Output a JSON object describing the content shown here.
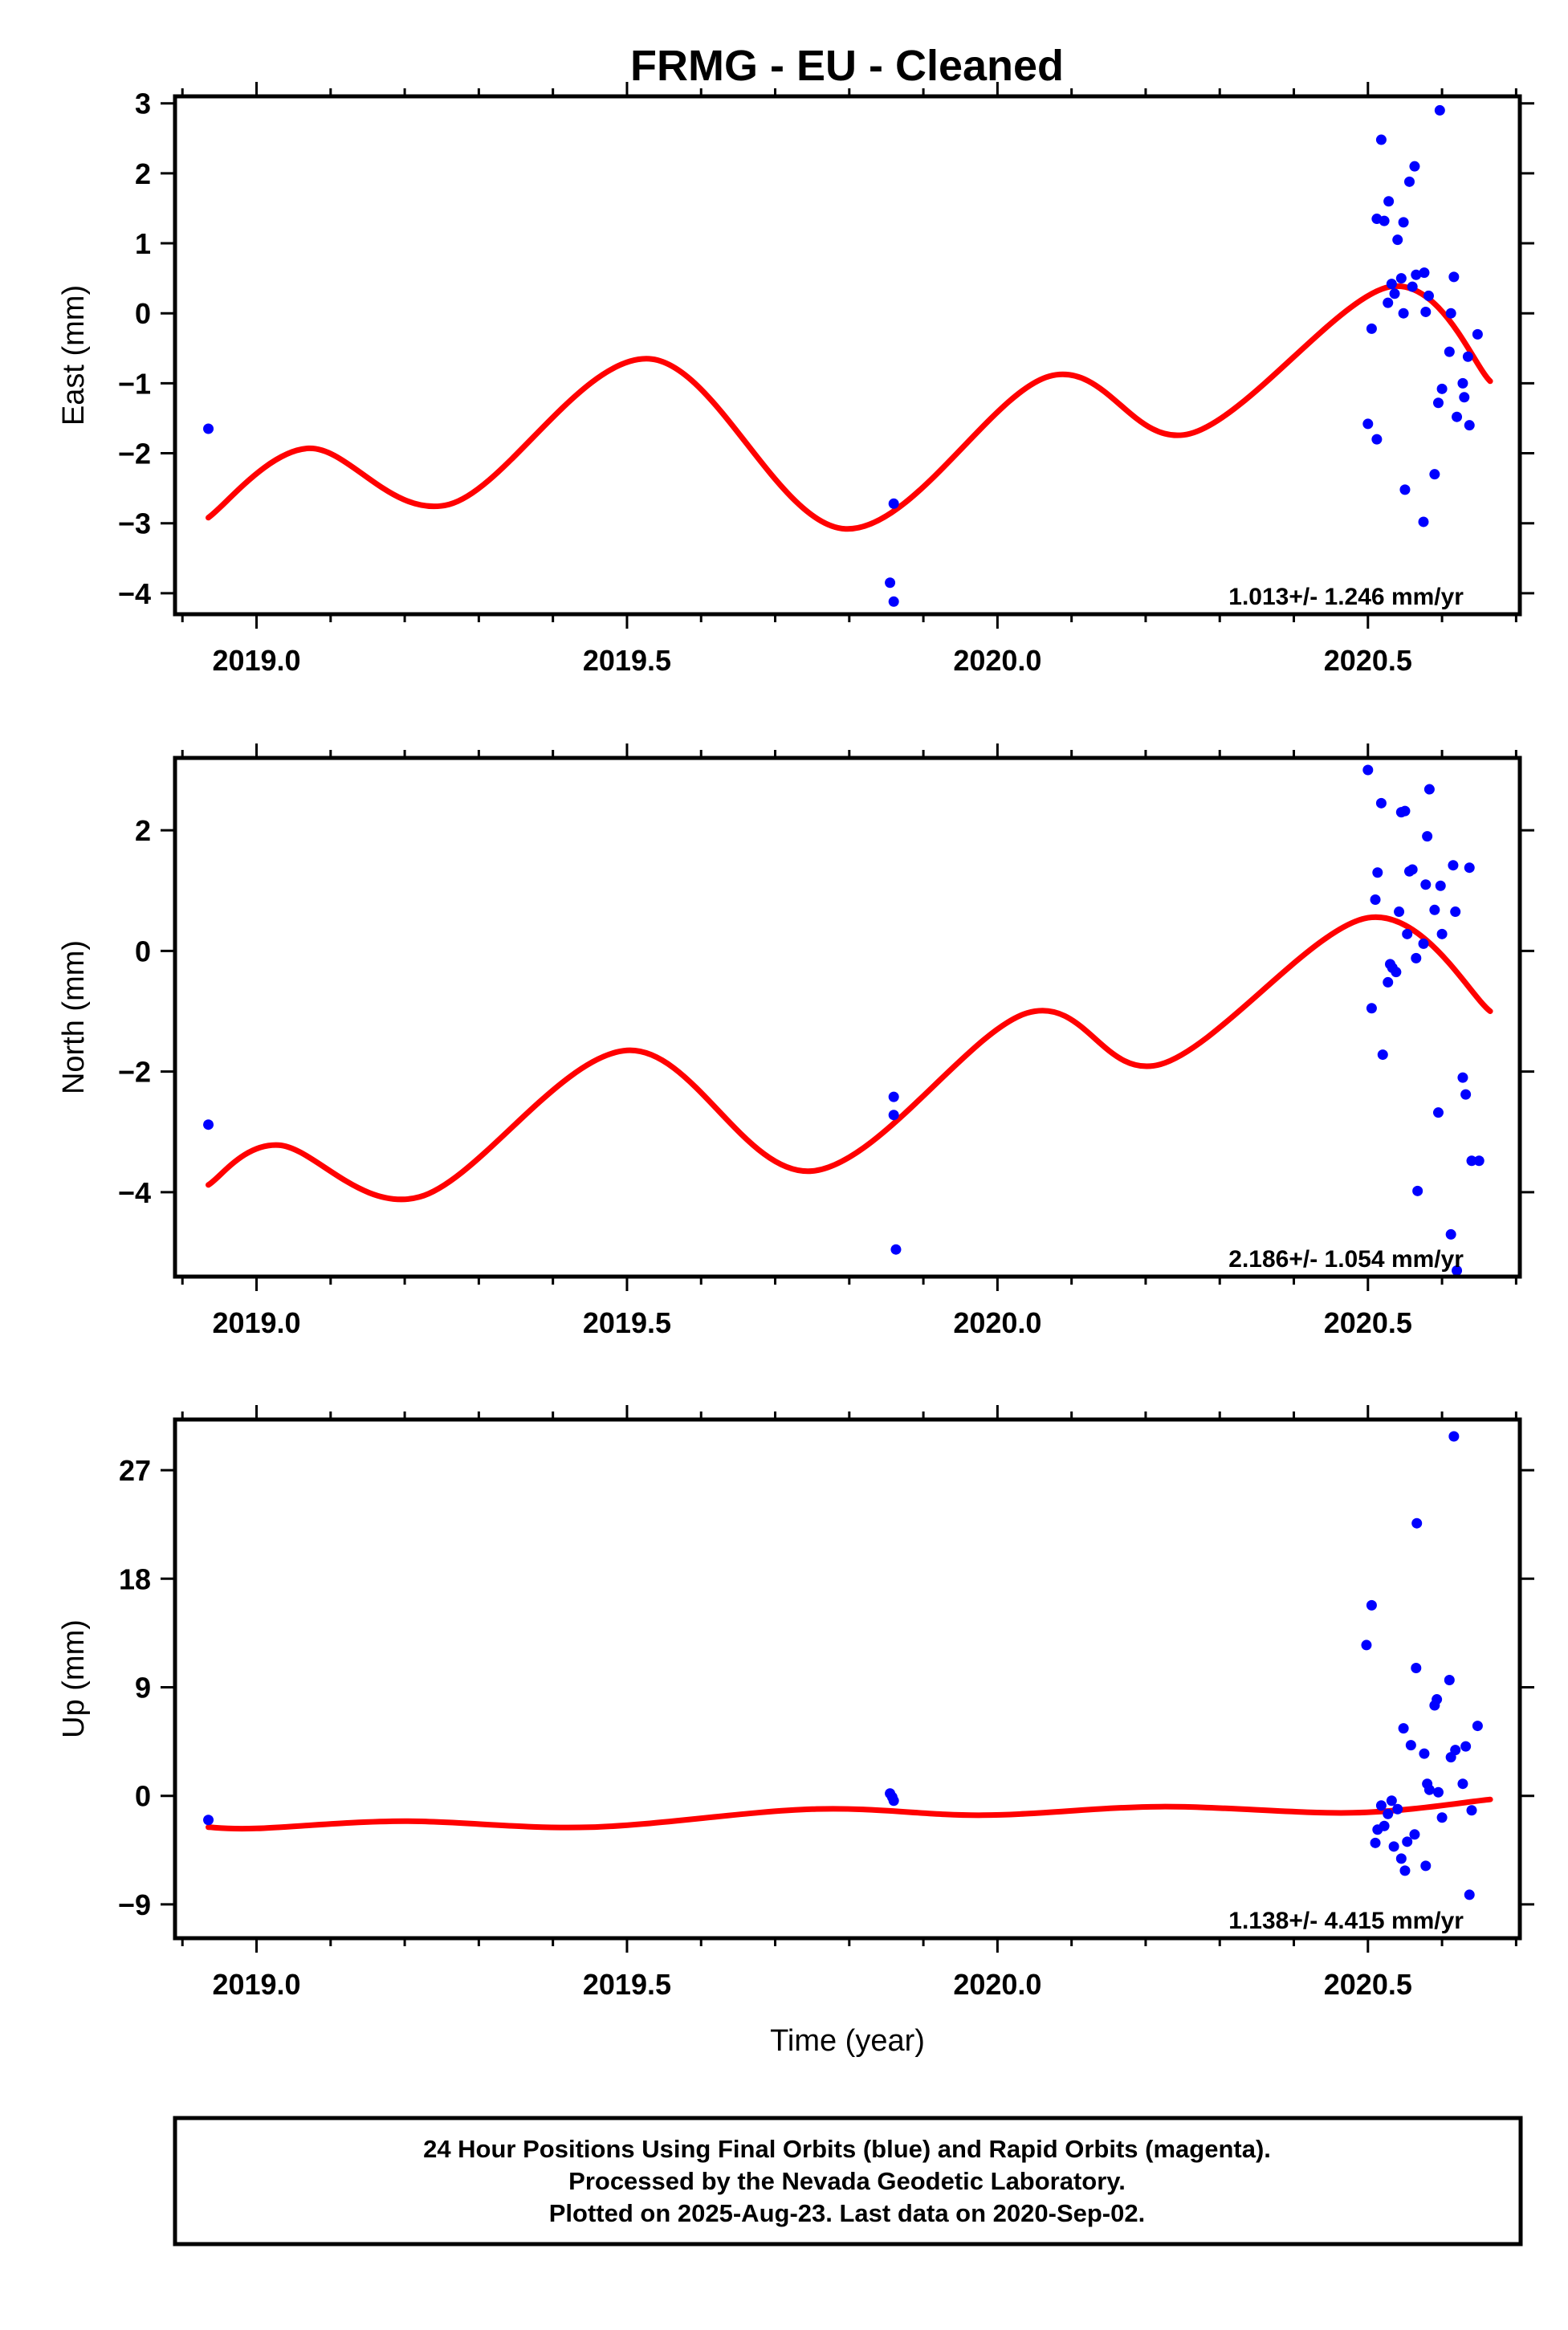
{
  "title": "FRMG  - EU - Cleaned",
  "footer": {
    "lines": [
      "24 Hour Positions Using Final Orbits (blue) and Rapid Orbits (magenta).",
      "Processed by the Nevada Geodetic Laboratory.",
      "Plotted on 2025-Aug-23. Last data on 2020-Sep-02."
    ]
  },
  "colors": {
    "points": "#0000ff",
    "fit": "#ff0000",
    "frame": "#000000"
  },
  "chart_data": [
    {
      "type": "scatter",
      "ylabel": "East (mm)",
      "xlabel": "",
      "xlim": [
        2018.89,
        2020.705
      ],
      "ylim": [
        -4.3,
        3.1
      ],
      "x_ticks": [
        "2019.0",
        "2019.5",
        "2020.0",
        "2020.5"
      ],
      "y_ticks": [
        "3",
        "2",
        "1",
        "0",
        "−1",
        "−2",
        "−3",
        "−4"
      ],
      "y_tick_values": [
        3,
        2,
        1,
        0,
        -1,
        -2,
        -3,
        -4
      ],
      "rate": "1.013+/- 1.246 mm/yr",
      "points": [
        [
          2018.935,
          -1.65
        ],
        [
          2019.86,
          -2.72
        ],
        [
          2019.855,
          -3.85
        ],
        [
          2019.86,
          -4.12
        ],
        [
          2020.5,
          -1.58
        ],
        [
          2020.505,
          -0.22
        ],
        [
          2020.512,
          1.35
        ],
        [
          2020.512,
          -1.8
        ],
        [
          2020.518,
          2.48
        ],
        [
          2020.522,
          1.32
        ],
        [
          2020.527,
          0.15
        ],
        [
          2020.528,
          1.6
        ],
        [
          2020.532,
          0.42
        ],
        [
          2020.536,
          0.28
        ],
        [
          2020.54,
          1.05
        ],
        [
          2020.545,
          0.5
        ],
        [
          2020.548,
          0.0
        ],
        [
          2020.548,
          1.3
        ],
        [
          2020.55,
          -2.52
        ],
        [
          2020.556,
          1.88
        ],
        [
          2020.56,
          0.38
        ],
        [
          2020.563,
          2.1
        ],
        [
          2020.565,
          0.55
        ],
        [
          2020.575,
          -2.98
        ],
        [
          2020.576,
          0.58
        ],
        [
          2020.578,
          0.02
        ],
        [
          2020.582,
          0.25
        ],
        [
          2020.59,
          -2.3
        ],
        [
          2020.595,
          -1.28
        ],
        [
          2020.597,
          2.9
        ],
        [
          2020.6,
          -1.08
        ],
        [
          2020.61,
          -0.55
        ],
        [
          2020.612,
          0.0
        ],
        [
          2020.616,
          0.52
        ],
        [
          2020.62,
          -1.48
        ],
        [
          2020.628,
          -1.0
        ],
        [
          2020.63,
          -1.2
        ],
        [
          2020.635,
          -0.62
        ],
        [
          2020.637,
          -1.6
        ],
        [
          2020.648,
          -0.3
        ]
      ],
      "fit": [
        [
          2018.935,
          -2.92
        ],
        [
          2019.07,
          -1.93
        ],
        [
          2019.26,
          -2.73
        ],
        [
          2019.53,
          -0.65
        ],
        [
          2019.795,
          -3.08
        ],
        [
          2020.07,
          -0.9
        ],
        [
          2020.26,
          -1.72
        ],
        [
          2020.53,
          0.38
        ],
        [
          2020.665,
          -0.97
        ]
      ]
    },
    {
      "type": "scatter",
      "ylabel": "North (mm)",
      "xlabel": "",
      "xlim": [
        2018.89,
        2020.705
      ],
      "ylim": [
        -5.4,
        3.2
      ],
      "x_ticks": [
        "2019.0",
        "2019.5",
        "2020.0",
        "2020.5"
      ],
      "y_ticks": [
        "2",
        "0",
        "−2",
        "−4"
      ],
      "y_tick_values": [
        2,
        0,
        -2,
        -4
      ],
      "rate": "2.186+/- 1.054 mm/yr",
      "points": [
        [
          2018.935,
          -2.88
        ],
        [
          2019.86,
          -2.42
        ],
        [
          2019.86,
          -2.72
        ],
        [
          2019.863,
          -4.95
        ],
        [
          2020.5,
          3.0
        ],
        [
          2020.505,
          -0.95
        ],
        [
          2020.51,
          0.85
        ],
        [
          2020.513,
          1.3
        ],
        [
          2020.518,
          2.45
        ],
        [
          2020.52,
          -1.72
        ],
        [
          2020.527,
          -0.52
        ],
        [
          2020.53,
          -0.22
        ],
        [
          2020.533,
          -0.28
        ],
        [
          2020.538,
          -0.35
        ],
        [
          2020.542,
          0.65
        ],
        [
          2020.545,
          2.3
        ],
        [
          2020.55,
          2.32
        ],
        [
          2020.553,
          0.28
        ],
        [
          2020.556,
          1.32
        ],
        [
          2020.56,
          1.35
        ],
        [
          2020.565,
          -0.12
        ],
        [
          2020.567,
          -3.98
        ],
        [
          2020.575,
          0.12
        ],
        [
          2020.578,
          1.1
        ],
        [
          2020.58,
          1.9
        ],
        [
          2020.583,
          2.68
        ],
        [
          2020.59,
          0.68
        ],
        [
          2020.595,
          -2.68
        ],
        [
          2020.598,
          1.08
        ],
        [
          2020.6,
          0.28
        ],
        [
          2020.612,
          -4.7
        ],
        [
          2020.615,
          1.42
        ],
        [
          2020.618,
          0.65
        ],
        [
          2020.62,
          -5.3
        ],
        [
          2020.628,
          -2.1
        ],
        [
          2020.632,
          -2.38
        ],
        [
          2020.637,
          1.38
        ],
        [
          2020.64,
          -3.48
        ],
        [
          2020.65,
          -3.48
        ]
      ],
      "fit": [
        [
          2018.935,
          -3.88
        ],
        [
          2019.03,
          -3.22
        ],
        [
          2019.22,
          -4.08
        ],
        [
          2019.5,
          -1.65
        ],
        [
          2019.75,
          -3.65
        ],
        [
          2020.04,
          -1.03
        ],
        [
          2020.22,
          -1.88
        ],
        [
          2020.5,
          0.55
        ],
        [
          2020.665,
          -1.0
        ]
      ]
    },
    {
      "type": "scatter",
      "ylabel": "Up (mm)",
      "xlabel": "Time (year)",
      "xlim": [
        2018.89,
        2020.705
      ],
      "ylim": [
        -11.8,
        31.2
      ],
      "x_ticks": [
        "2019.0",
        "2019.5",
        "2020.0",
        "2020.5"
      ],
      "y_ticks": [
        "27",
        "18",
        "9",
        "0",
        "−9"
      ],
      "y_tick_values": [
        27,
        18,
        9,
        0,
        -9
      ],
      "rate": "1.138+/- 4.415 mm/yr",
      "points": [
        [
          2018.935,
          -2.0
        ],
        [
          2019.855,
          0.2
        ],
        [
          2019.858,
          -0.1
        ],
        [
          2019.86,
          -0.4
        ],
        [
          2020.498,
          12.5
        ],
        [
          2020.505,
          15.8
        ],
        [
          2020.51,
          -3.9
        ],
        [
          2020.513,
          -2.8
        ],
        [
          2020.518,
          -0.8
        ],
        [
          2020.522,
          -2.5
        ],
        [
          2020.527,
          -1.5
        ],
        [
          2020.532,
          -0.4
        ],
        [
          2020.535,
          -4.2
        ],
        [
          2020.54,
          -1.1
        ],
        [
          2020.545,
          -5.2
        ],
        [
          2020.548,
          5.6
        ],
        [
          2020.55,
          -6.2
        ],
        [
          2020.553,
          -3.8
        ],
        [
          2020.558,
          4.2
        ],
        [
          2020.563,
          -3.2
        ],
        [
          2020.565,
          10.6
        ],
        [
          2020.566,
          22.6
        ],
        [
          2020.576,
          3.5
        ],
        [
          2020.578,
          -5.8
        ],
        [
          2020.58,
          1.0
        ],
        [
          2020.583,
          0.5
        ],
        [
          2020.59,
          7.5
        ],
        [
          2020.593,
          8.0
        ],
        [
          2020.595,
          0.3
        ],
        [
          2020.6,
          -1.8
        ],
        [
          2020.61,
          9.6
        ],
        [
          2020.612,
          3.2
        ],
        [
          2020.616,
          29.8
        ],
        [
          2020.618,
          3.8
        ],
        [
          2020.628,
          1.0
        ],
        [
          2020.632,
          4.1
        ],
        [
          2020.637,
          -8.2
        ],
        [
          2020.64,
          -1.2
        ],
        [
          2020.648,
          5.8
        ]
      ],
      "fit": [
        [
          2018.935,
          -2.6
        ],
        [
          2019.0,
          -2.7
        ],
        [
          2019.2,
          -2.1
        ],
        [
          2019.45,
          -2.6
        ],
        [
          2019.75,
          -1.1
        ],
        [
          2019.98,
          -1.6
        ],
        [
          2020.22,
          -0.9
        ],
        [
          2020.48,
          -1.4
        ],
        [
          2020.665,
          -0.3
        ]
      ]
    }
  ]
}
